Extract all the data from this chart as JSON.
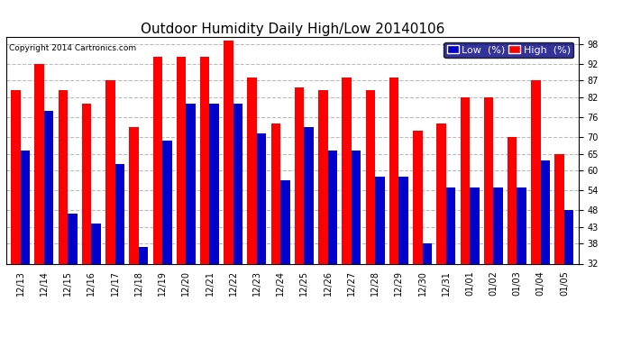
{
  "title": "Outdoor Humidity Daily High/Low 20140106",
  "copyright": "Copyright 2014 Cartronics.com",
  "legend_low": "Low  (%)",
  "legend_high": "High  (%)",
  "categories": [
    "12/13",
    "12/14",
    "12/15",
    "12/16",
    "12/17",
    "12/18",
    "12/19",
    "12/20",
    "12/21",
    "12/22",
    "12/23",
    "12/24",
    "12/25",
    "12/26",
    "12/27",
    "12/28",
    "12/29",
    "12/30",
    "12/31",
    "01/01",
    "01/02",
    "01/03",
    "01/04",
    "01/05"
  ],
  "high_values": [
    84,
    92,
    84,
    80,
    87,
    73,
    94,
    94,
    94,
    99,
    88,
    74,
    85,
    84,
    88,
    84,
    88,
    72,
    74,
    82,
    82,
    70,
    87,
    65
  ],
  "low_values": [
    66,
    78,
    47,
    44,
    62,
    37,
    69,
    80,
    80,
    80,
    71,
    57,
    73,
    66,
    66,
    58,
    58,
    38,
    55,
    55,
    55,
    55,
    63,
    48
  ],
  "ylim_min": 32,
  "ylim_max": 100,
  "yticks": [
    32,
    38,
    43,
    48,
    54,
    60,
    65,
    70,
    76,
    82,
    87,
    92,
    98
  ],
  "bar_width": 0.4,
  "color_high": "#ff0000",
  "color_low": "#0000cc",
  "bg_color": "#ffffff",
  "grid_color": "#bbbbbb",
  "title_fontsize": 11,
  "tick_fontsize": 7,
  "copyright_fontsize": 6.5,
  "legend_fontsize": 8,
  "legend_bg": "#000080"
}
